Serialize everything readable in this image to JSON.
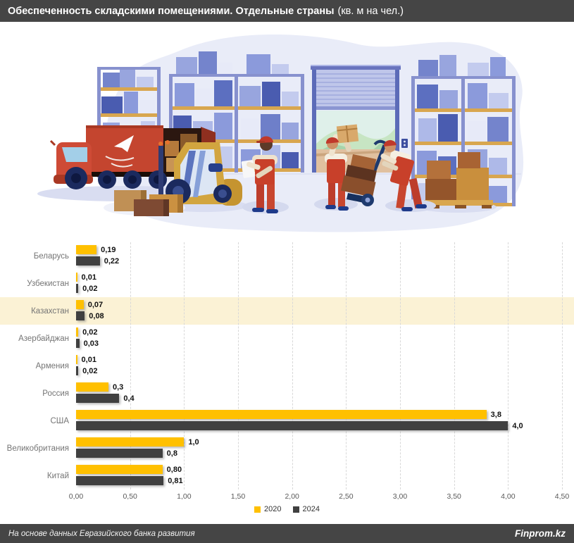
{
  "header": {
    "title_bold": "Обеспеченность складскими помещениями. Отдельные страны",
    "title_suffix": "(кв. м на чел.)"
  },
  "chart_data": {
    "type": "bar",
    "orientation": "horizontal",
    "title": "Обеспеченность складскими помещениями. Отдельные страны (кв. м на чел.)",
    "categories": [
      "Беларусь",
      "Узбекистан",
      "Казахстан",
      "Азербайджан",
      "Армения",
      "Россия",
      "США",
      "Великобритания",
      "Китай"
    ],
    "series": [
      {
        "name": "2020",
        "color": "#FFC000",
        "values": [
          0.19,
          0.01,
          0.07,
          0.02,
          0.01,
          0.3,
          3.8,
          1.0,
          0.8
        ],
        "labels": [
          "0,19",
          "0,01",
          "0,07",
          "0,02",
          "0,01",
          "0,3",
          "3,8",
          "1,0",
          "0,80"
        ]
      },
      {
        "name": "2024",
        "color": "#404040",
        "values": [
          0.22,
          0.02,
          0.08,
          0.03,
          0.02,
          0.4,
          4.0,
          0.8,
          0.81
        ],
        "labels": [
          "0,22",
          "0,02",
          "0,08",
          "0,03",
          "0,02",
          "0,4",
          "4,0",
          "0,8",
          "0,81"
        ]
      }
    ],
    "x_ticks": [
      "0,00",
      "0,50",
      "1,00",
      "1,50",
      "2,00",
      "2,50",
      "3,00",
      "3,50",
      "4,00",
      "4,50"
    ],
    "xlim": [
      0,
      4.5
    ],
    "gridlines": "vertical-dashed",
    "legend_position": "bottom-center",
    "highlighted_category": "Казахстан",
    "highlight_color": "#FBF2D5"
  },
  "footer": {
    "source": "На основе данных Евразийского банка развития",
    "brand": "Finprom.kz"
  }
}
